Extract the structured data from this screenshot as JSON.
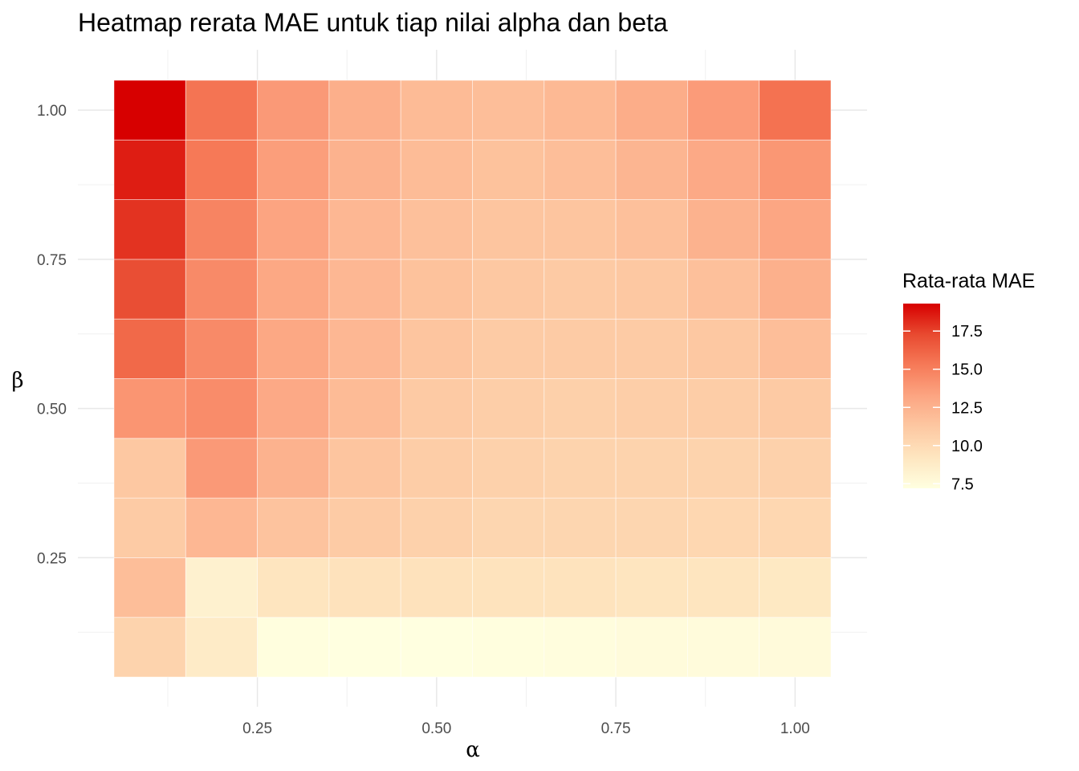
{
  "chart_data": {
    "type": "heatmap",
    "title": "Heatmap rerata MAE untuk tiap nilai alpha dan beta",
    "xlabel": "α",
    "ylabel": "β",
    "x": [
      0.1,
      0.2,
      0.3,
      0.4,
      0.5,
      0.6,
      0.7,
      0.8,
      0.9,
      1.0
    ],
    "y": [
      0.1,
      0.2,
      0.3,
      0.4,
      0.5,
      0.6,
      0.7,
      0.8,
      0.9,
      1.0
    ],
    "xlim": [
      0.05,
      1.05
    ],
    "ylim": [
      0.05,
      1.05
    ],
    "x_ticks": [
      0.25,
      0.5,
      0.75,
      1.0
    ],
    "x_tick_labels": [
      "0.25",
      "0.50",
      "0.75",
      "1.00"
    ],
    "y_ticks": [
      0.25,
      0.5,
      0.75,
      1.0
    ],
    "y_tick_labels": [
      "0.25",
      "0.50",
      "0.75",
      "1.00"
    ],
    "values_by_beta": [
      [
        10.5,
        8.8,
        7.3,
        7.2,
        7.2,
        7.3,
        7.4,
        7.5,
        7.5,
        7.6
      ],
      [
        11.8,
        8.3,
        9.3,
        9.5,
        9.5,
        9.4,
        9.4,
        9.3,
        9.3,
        9.0
      ],
      [
        11.0,
        12.2,
        11.5,
        11.0,
        10.6,
        10.3,
        10.3,
        10.3,
        10.2,
        10.2
      ],
      [
        11.2,
        13.8,
        12.5,
        11.4,
        10.9,
        10.6,
        10.5,
        10.5,
        10.5,
        10.6
      ],
      [
        14.0,
        14.4,
        13.0,
        12.0,
        11.1,
        10.8,
        10.7,
        10.8,
        10.9,
        11.1
      ],
      [
        16.0,
        14.5,
        13.1,
        12.2,
        11.4,
        11.0,
        11.0,
        11.0,
        11.2,
        11.8
      ],
      [
        17.1,
        14.5,
        13.1,
        12.2,
        11.6,
        11.2,
        11.1,
        11.2,
        11.7,
        12.6
      ],
      [
        17.9,
        14.8,
        13.3,
        12.2,
        11.7,
        11.4,
        11.4,
        11.7,
        12.5,
        13.2
      ],
      [
        18.5,
        15.3,
        13.6,
        12.5,
        11.9,
        11.6,
        11.8,
        12.3,
        13.0,
        13.9
      ],
      [
        19.3,
        15.5,
        13.8,
        12.7,
        12.0,
        11.8,
        12.1,
        12.8,
        13.7,
        15.6
      ]
    ],
    "legend": {
      "title": "Rata-rata MAE",
      "position": "right",
      "range": [
        7.2,
        19.3
      ],
      "ticks": [
        7.5,
        10.0,
        12.5,
        15.0,
        17.5
      ],
      "tick_labels": [
        "7.5",
        "10.0",
        "12.5",
        "15.0",
        "17.5"
      ]
    },
    "color_scale": [
      "#ffffe0",
      "#fee6c0",
      "#fdc8a2",
      "#fca582",
      "#f67a58",
      "#e84a30",
      "#d70000"
    ],
    "grid": true
  }
}
